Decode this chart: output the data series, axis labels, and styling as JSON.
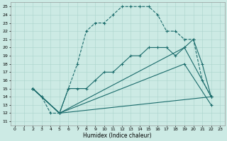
{
  "xlabel": "Humidex (Indice chaleur)",
  "xlim": [
    -0.5,
    23.5
  ],
  "ylim": [
    10.5,
    25.5
  ],
  "yticks": [
    11,
    12,
    13,
    14,
    15,
    16,
    17,
    18,
    19,
    20,
    21,
    22,
    23,
    24,
    25
  ],
  "xticks": [
    0,
    1,
    2,
    3,
    4,
    5,
    6,
    7,
    8,
    9,
    10,
    11,
    12,
    13,
    14,
    15,
    16,
    17,
    18,
    19,
    20,
    21,
    22,
    23
  ],
  "bg_color": "#cceae4",
  "line_color": "#1a6b6b",
  "grid_color": "#aad4cc",
  "line1_x": [
    2,
    3,
    4,
    5,
    6,
    7,
    8,
    9,
    10,
    11,
    12,
    13,
    14,
    15,
    16,
    17,
    18,
    19,
    20,
    21,
    22
  ],
  "line1_y": [
    15,
    14,
    12,
    12,
    15,
    18,
    22,
    23,
    23,
    24,
    25,
    25,
    25,
    25,
    24,
    22,
    22,
    21,
    21,
    16,
    14
  ],
  "line2_x": [
    2,
    3,
    5,
    6,
    7,
    8,
    9,
    10,
    11,
    12,
    13,
    14,
    15,
    16,
    17,
    18,
    19,
    20,
    21,
    22
  ],
  "line2_y": [
    15,
    14,
    12,
    15,
    15,
    15,
    16,
    17,
    17,
    18,
    19,
    19,
    20,
    20,
    20,
    19,
    20,
    21,
    18,
    14
  ],
  "line3_x": [
    2,
    5,
    22
  ],
  "line3_y": [
    15,
    12,
    14
  ],
  "line4_x": [
    2,
    5,
    19,
    22
  ],
  "line4_y": [
    15,
    12,
    20,
    14
  ],
  "line5_x": [
    2,
    5,
    19,
    22
  ],
  "line5_y": [
    15,
    12,
    18,
    13
  ]
}
